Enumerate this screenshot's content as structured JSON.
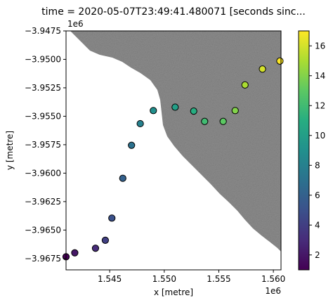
{
  "chart_data": {
    "type": "scatter",
    "title": "time = 2020-05-07T23:49:41.480071 [seconds sinc...",
    "xlabel": "x [metre]",
    "ylabel": "y [metre]",
    "x_offset_label": "1e6",
    "y_offset_label": "1e6",
    "xlim": [
      1.541,
      1.5607
    ],
    "ylim": [
      -3.9685,
      -3.9475
    ],
    "x_ticks": [
      1.545,
      1.55,
      1.555,
      1.56
    ],
    "x_tick_labels": [
      "1.545",
      "1.550",
      "1.555",
      "1.560"
    ],
    "y_ticks": [
      -3.9475,
      -3.95,
      -3.9525,
      -3.955,
      -3.9575,
      -3.96,
      -3.9625,
      -3.965,
      -3.9675
    ],
    "y_tick_labels": [
      "−3.9475",
      "−3.9500",
      "−3.9525",
      "−3.9550",
      "−3.9575",
      "−3.9600",
      "−3.9625",
      "−3.9650",
      "−3.9675"
    ],
    "grid": false,
    "background": "grayscale satellite image; land (gray) upper-right, water (white) lower-left",
    "colormap": "viridis",
    "colorbar": {
      "range": [
        1,
        17
      ],
      "ticks": [
        2,
        4,
        6,
        8,
        10,
        12,
        14,
        16
      ],
      "tick_labels": [
        "2",
        "4",
        "6",
        "8",
        "10",
        "12",
        "14",
        "16"
      ]
    },
    "points": [
      {
        "x": 1.541,
        "y": -3.96735,
        "value": 1
      },
      {
        "x": 1.5418,
        "y": -3.967,
        "value": 2
      },
      {
        "x": 1.5437,
        "y": -3.9666,
        "value": 3
      },
      {
        "x": 1.5446,
        "y": -3.9659,
        "value": 4
      },
      {
        "x": 1.5452,
        "y": -3.96395,
        "value": 5
      },
      {
        "x": 1.5462,
        "y": -3.96045,
        "value": 6
      },
      {
        "x": 1.547,
        "y": -3.95755,
        "value": 7
      },
      {
        "x": 1.5478,
        "y": -3.95565,
        "value": 8
      },
      {
        "x": 1.549,
        "y": -3.9545,
        "value": 9
      },
      {
        "x": 1.551,
        "y": -3.9542,
        "value": 10
      },
      {
        "x": 1.5527,
        "y": -3.95455,
        "value": 11
      },
      {
        "x": 1.5537,
        "y": -3.95545,
        "value": 12
      },
      {
        "x": 1.5554,
        "y": -3.95545,
        "value": 13
      },
      {
        "x": 1.5565,
        "y": -3.9545,
        "value": 14
      },
      {
        "x": 1.5574,
        "y": -3.95225,
        "value": 15
      },
      {
        "x": 1.559,
        "y": -3.95085,
        "value": 16
      },
      {
        "x": 1.5606,
        "y": -3.95015,
        "value": 17
      }
    ]
  }
}
